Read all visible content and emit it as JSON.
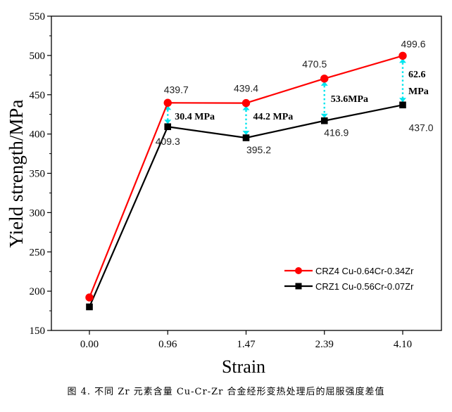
{
  "chart_data": {
    "type": "line",
    "categories": [
      "0.00",
      "0.96",
      "1.47",
      "2.39",
      "4.10"
    ],
    "xlabel": "Strain",
    "ylabel": "Yield strength/MPa",
    "ylim": [
      150,
      550
    ],
    "yticks": [
      "150",
      "200",
      "250",
      "300",
      "350",
      "400",
      "450",
      "500",
      "550"
    ],
    "grid": false,
    "legend_position": "bottom-right",
    "series": [
      {
        "name": "CRZ4 Cu-0.64Cr-0.34Zr",
        "color": "#ff0000",
        "marker": "circle",
        "values": [
          192,
          439.7,
          439.4,
          470.5,
          499.6
        ],
        "labels": [
          "",
          "439.7",
          "439.4",
          "470.5",
          "499.6"
        ]
      },
      {
        "name": "CRZ1 Cu-0.56Cr-0.07Zr",
        "color": "#000000",
        "marker": "square",
        "values": [
          180,
          409.3,
          395.2,
          416.9,
          437.0
        ],
        "labels": [
          "",
          "409.3",
          "395.2",
          "416.9",
          "437.0"
        ]
      }
    ],
    "differences": [
      {
        "category": "0.96",
        "label": "30.4 MPa"
      },
      {
        "category": "1.47",
        "label": "44.2 MPa"
      },
      {
        "category": "2.39",
        "label": "53.6MPa"
      },
      {
        "category": "4.10",
        "label_lines": [
          "62.6",
          "MPa"
        ]
      }
    ],
    "difference_color": "#00e5ee"
  },
  "caption": "图 4. 不同 Zr 元素含量 Cu-Cr-Zr 合金经形变热处理后的屈服强度差值"
}
